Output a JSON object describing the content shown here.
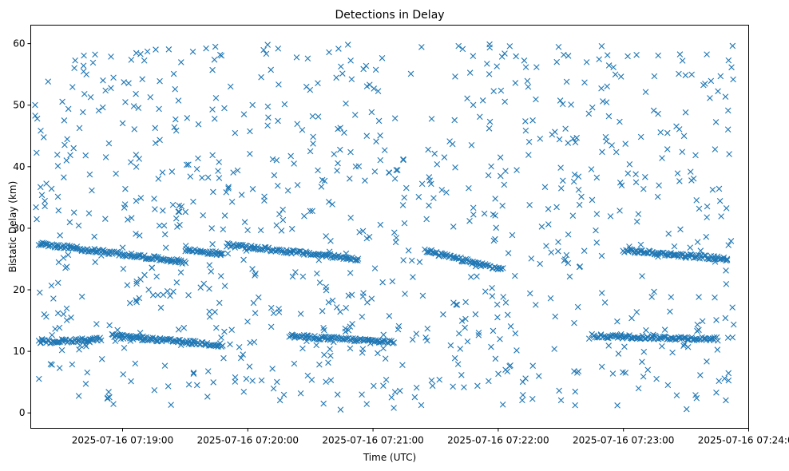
{
  "chart_data": {
    "type": "scatter",
    "title": "Detections in Delay",
    "xlabel": "Time (UTC)",
    "ylabel": "Bistatic Delay (km)",
    "marker": "x",
    "color": "#1f77b4",
    "x_range_seconds_after_07_19": [
      -44,
      298
    ],
    "xlim": [
      "2025-07-16 07:18:16",
      "2025-07-16 07:24:00"
    ],
    "ylim": [
      -2.5,
      63
    ],
    "grid": false,
    "x_ticks": [
      "2025-07-16 07:19:00",
      "2025-07-16 07:20:00",
      "2025-07-16 07:21:00",
      "2025-07-16 07:22:00",
      "2025-07-16 07:23:00",
      "2025-07-16 07:24:00"
    ],
    "y_ticks": [
      "0",
      "10",
      "20",
      "30",
      "40",
      "50",
      "60"
    ],
    "tracks": [
      {
        "start": "07:18:20",
        "end": "07:19:30",
        "y_start": 27.5,
        "y_end": 24.5
      },
      {
        "start": "07:19:30",
        "end": "07:19:48",
        "y_start": 26.5,
        "y_end": 25.8
      },
      {
        "start": "07:19:50",
        "end": "07:20:53",
        "y_start": 27.3,
        "y_end": 25.0
      },
      {
        "start": "07:21:25",
        "end": "07:22:02",
        "y_start": 26.3,
        "y_end": 23.3
      },
      {
        "start": "07:23:00",
        "end": "07:23:50",
        "y_start": 26.4,
        "y_end": 25.0
      },
      {
        "start": "07:18:20",
        "end": "07:18:50",
        "y_start": 11.5,
        "y_end": 12.0
      },
      {
        "start": "07:18:55",
        "end": "07:19:48",
        "y_start": 12.5,
        "y_end": 11.0
      },
      {
        "start": "07:20:20",
        "end": "07:21:10",
        "y_start": 12.5,
        "y_end": 11.5
      },
      {
        "start": "07:22:45",
        "end": "07:23:45",
        "y_start": 12.5,
        "y_end": 12.0
      }
    ]
  }
}
